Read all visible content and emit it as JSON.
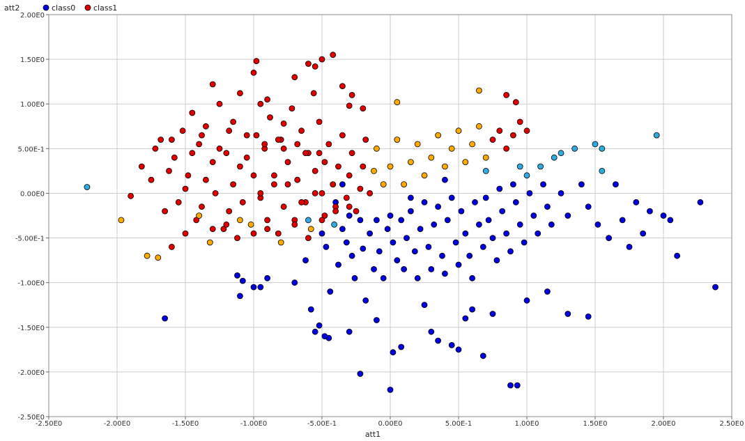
{
  "chart_data": {
    "type": "scatter",
    "xlabel": "att1",
    "ylabel": "att2",
    "xlim": [
      -2.5,
      2.5
    ],
    "ylim": [
      -2.5,
      2.0
    ],
    "x_ticks": [
      -2.5,
      -2.0,
      -1.5,
      -1.0,
      -0.5,
      0.0,
      0.5,
      1.0,
      1.5,
      2.0,
      2.5
    ],
    "x_tick_labels": [
      "-2.50E0",
      "-2.00E0",
      "-1.50E0",
      "-1.00E0",
      "-5.00E-1",
      "0.00E0",
      "5.00E-1",
      "1.00E0",
      "1.50E0",
      "2.00E0",
      "2.50E0"
    ],
    "y_ticks": [
      2.0,
      1.5,
      1.0,
      0.5,
      0.0,
      -0.5,
      -1.0,
      -1.5,
      -2.0,
      -2.5
    ],
    "y_tick_labels": [
      "2.00E0",
      "1.50E0",
      "1.00E0",
      "5.00E-1",
      "0.00E0",
      "-5.00E-1",
      "-1.00E0",
      "-1.50E0",
      "-2.00E0",
      "-2.50E0"
    ],
    "grid": true,
    "legend": "top-left",
    "series": [
      {
        "name": "class0",
        "color": "#0000dd",
        "highlight_color": "#33aadd",
        "x": [
          -2.22,
          -1.65,
          -1.12,
          -1.1,
          -1.08,
          -0.95,
          -0.62,
          -0.55,
          -0.5,
          -0.47,
          -0.44,
          -0.41,
          -0.38,
          -0.35,
          -0.32,
          -0.3,
          -0.28,
          -0.26,
          -0.22,
          -0.2,
          -0.18,
          -0.15,
          -0.12,
          -0.1,
          -0.08,
          -0.05,
          -0.02,
          0.0,
          0.02,
          0.05,
          0.08,
          0.1,
          0.12,
          0.15,
          0.18,
          0.2,
          0.22,
          0.25,
          0.28,
          0.3,
          0.32,
          0.35,
          0.38,
          0.4,
          0.42,
          0.45,
          0.48,
          0.5,
          0.52,
          0.55,
          0.58,
          0.6,
          0.62,
          0.65,
          0.68,
          0.7,
          0.72,
          0.75,
          0.78,
          0.8,
          0.82,
          0.85,
          0.88,
          0.9,
          0.92,
          0.95,
          0.98,
          1.0,
          1.02,
          1.05,
          1.08,
          1.1,
          1.12,
          1.15,
          1.18,
          1.2,
          1.25,
          1.3,
          1.35,
          1.4,
          1.45,
          1.5,
          1.52,
          1.55,
          1.6,
          1.65,
          1.7,
          1.75,
          1.8,
          1.85,
          1.9,
          1.95,
          2.0,
          2.05,
          2.1,
          2.27,
          2.38,
          -0.3,
          -0.45,
          -0.52,
          -0.58,
          0.02,
          0.08,
          0.35,
          0.45,
          0.5,
          0.88,
          0.93,
          0.68,
          -0.22,
          -0.1,
          0.3,
          0.6,
          1.3,
          1.45,
          0.0,
          -0.48,
          -0.7,
          -0.9,
          -1.0,
          0.25,
          0.55,
          0.75,
          1.0,
          1.15,
          -0.6,
          -0.4,
          -0.35,
          0.15,
          0.4,
          0.7,
          0.95,
          1.25,
          1.55
        ],
        "y": [
          0.07,
          -1.4,
          -0.92,
          -1.15,
          -0.98,
          -1.05,
          -0.75,
          -1.55,
          -0.45,
          -0.6,
          -1.1,
          -0.35,
          -0.8,
          -0.4,
          -0.55,
          -0.25,
          -0.7,
          -0.95,
          -0.3,
          -0.62,
          -1.2,
          -0.45,
          -0.85,
          -0.3,
          -0.65,
          -0.95,
          -0.4,
          -0.25,
          -0.55,
          -0.75,
          -0.3,
          -0.85,
          -0.5,
          -0.2,
          -0.65,
          -0.95,
          -0.4,
          -0.1,
          -0.6,
          -0.85,
          -0.35,
          -0.15,
          -0.7,
          -0.9,
          -0.3,
          -0.05,
          -0.55,
          -0.8,
          -0.2,
          -0.45,
          -0.7,
          -0.95,
          -0.1,
          -0.35,
          -0.6,
          -0.05,
          -0.3,
          -0.5,
          -0.75,
          0.05,
          -0.2,
          -0.45,
          -0.65,
          0.1,
          -0.1,
          -0.35,
          -0.55,
          0.2,
          0.0,
          -0.25,
          -0.45,
          0.3,
          0.1,
          -0.15,
          -0.35,
          0.4,
          0.0,
          -0.25,
          0.5,
          0.1,
          -0.15,
          0.55,
          -0.35,
          0.25,
          -0.5,
          0.1,
          -0.3,
          -0.6,
          -0.1,
          -0.45,
          -0.2,
          0.65,
          -0.25,
          -0.3,
          -0.7,
          -0.1,
          -1.05,
          -1.55,
          -1.62,
          -1.48,
          -1.3,
          -1.78,
          -1.72,
          -1.65,
          -1.7,
          -1.75,
          -2.15,
          -2.15,
          -1.82,
          -2.02,
          -1.42,
          -1.55,
          -1.3,
          -1.35,
          -1.38,
          -2.2,
          -1.6,
          -1.0,
          -0.95,
          -1.05,
          -1.25,
          -1.4,
          -1.35,
          -1.2,
          -1.1,
          -0.3,
          -0.1,
          0.1,
          -0.05,
          0.15,
          0.25,
          0.3,
          0.45,
          0.5
        ]
      },
      {
        "name": "class1",
        "color": "#dd0000",
        "highlight_color": "#ffaa00",
        "x": [
          -1.97,
          -1.9,
          -1.82,
          -1.78,
          -1.75,
          -1.72,
          -1.7,
          -1.68,
          -1.65,
          -1.62,
          -1.6,
          -1.58,
          -1.55,
          -1.52,
          -1.5,
          -1.48,
          -1.45,
          -1.42,
          -1.4,
          -1.38,
          -1.35,
          -1.32,
          -1.3,
          -1.28,
          -1.25,
          -1.22,
          -1.2,
          -1.18,
          -1.15,
          -1.12,
          -1.1,
          -1.08,
          -1.05,
          -1.02,
          -1.0,
          -0.98,
          -0.95,
          -0.92,
          -0.9,
          -0.88,
          -0.85,
          -0.82,
          -0.8,
          -0.78,
          -0.75,
          -0.72,
          -0.7,
          -0.68,
          -0.65,
          -0.62,
          -0.6,
          -0.58,
          -0.55,
          -0.52,
          -0.5,
          -0.48,
          -0.45,
          -0.42,
          -0.4,
          -0.38,
          -0.35,
          -0.32,
          -0.3,
          -0.28,
          -0.25,
          -0.22,
          -0.2,
          -0.18,
          -0.15,
          -0.12,
          -0.1,
          -0.05,
          0.0,
          0.05,
          0.1,
          0.15,
          0.2,
          0.25,
          0.3,
          0.35,
          0.4,
          0.45,
          0.5,
          0.55,
          0.6,
          0.65,
          0.7,
          0.75,
          0.8,
          0.85,
          0.9,
          0.95,
          1.0,
          -1.4,
          -1.3,
          -1.2,
          -1.1,
          -1.0,
          -0.9,
          -0.8,
          -0.7,
          -0.6,
          -0.5,
          -0.4,
          -0.3,
          -1.5,
          -1.35,
          -1.15,
          -0.95,
          -0.85,
          -0.75,
          -0.65,
          -0.55,
          -1.45,
          -1.25,
          -1.05,
          -0.92,
          -0.78,
          -0.62,
          -0.48,
          -1.6,
          -1.38,
          -1.18,
          -0.98,
          -0.82,
          -0.68,
          -0.52,
          -1.3,
          -1.1,
          -0.9,
          -0.7,
          -0.55,
          -0.42,
          -0.35,
          -0.28,
          -0.2,
          -0.95,
          -1.0,
          -0.78,
          -0.6,
          -0.56,
          -0.5,
          -0.3,
          0.05,
          0.65,
          0.85,
          0.92
        ],
        "y": [
          -0.3,
          -0.03,
          0.3,
          -0.7,
          0.15,
          0.5,
          -0.72,
          0.6,
          -0.2,
          0.25,
          -0.6,
          0.4,
          -0.1,
          0.7,
          -0.45,
          0.2,
          0.9,
          -0.3,
          0.55,
          -0.15,
          0.75,
          -0.55,
          0.35,
          0.0,
          1.0,
          -0.4,
          0.45,
          -0.2,
          0.8,
          -0.5,
          0.3,
          -0.1,
          0.65,
          -0.35,
          0.2,
          1.48,
          -0.05,
          0.5,
          -0.3,
          0.85,
          0.1,
          -0.45,
          0.6,
          -0.15,
          0.35,
          0.95,
          -0.3,
          0.15,
          0.7,
          -0.1,
          0.45,
          -0.4,
          0.25,
          0.8,
          0.0,
          -0.25,
          0.55,
          0.1,
          -0.15,
          0.3,
          0.65,
          -0.05,
          0.2,
          0.45,
          -0.2,
          0.05,
          0.3,
          0.6,
          0.0,
          0.25,
          0.5,
          0.1,
          0.3,
          0.6,
          0.1,
          0.35,
          0.55,
          0.2,
          0.4,
          0.65,
          0.3,
          0.5,
          0.7,
          0.35,
          0.55,
          0.75,
          0.4,
          0.6,
          0.7,
          0.5,
          0.65,
          0.8,
          0.7,
          -0.25,
          -0.4,
          -0.35,
          -0.3,
          -0.45,
          -0.4,
          -0.55,
          -0.35,
          -0.5,
          -0.3,
          -0.2,
          -0.15,
          0.05,
          0.15,
          0.1,
          0.0,
          0.2,
          0.1,
          -0.1,
          0.0,
          0.45,
          0.5,
          0.4,
          0.55,
          0.5,
          0.45,
          0.35,
          0.6,
          0.65,
          0.7,
          0.65,
          0.6,
          0.55,
          0.45,
          1.22,
          1.12,
          1.05,
          1.3,
          1.42,
          1.55,
          1.2,
          1.1,
          0.95,
          1.0,
          1.35,
          0.78,
          1.45,
          1.12,
          1.5,
          0.98,
          1.02,
          1.15,
          1.1,
          1.02
        ]
      }
    ]
  }
}
